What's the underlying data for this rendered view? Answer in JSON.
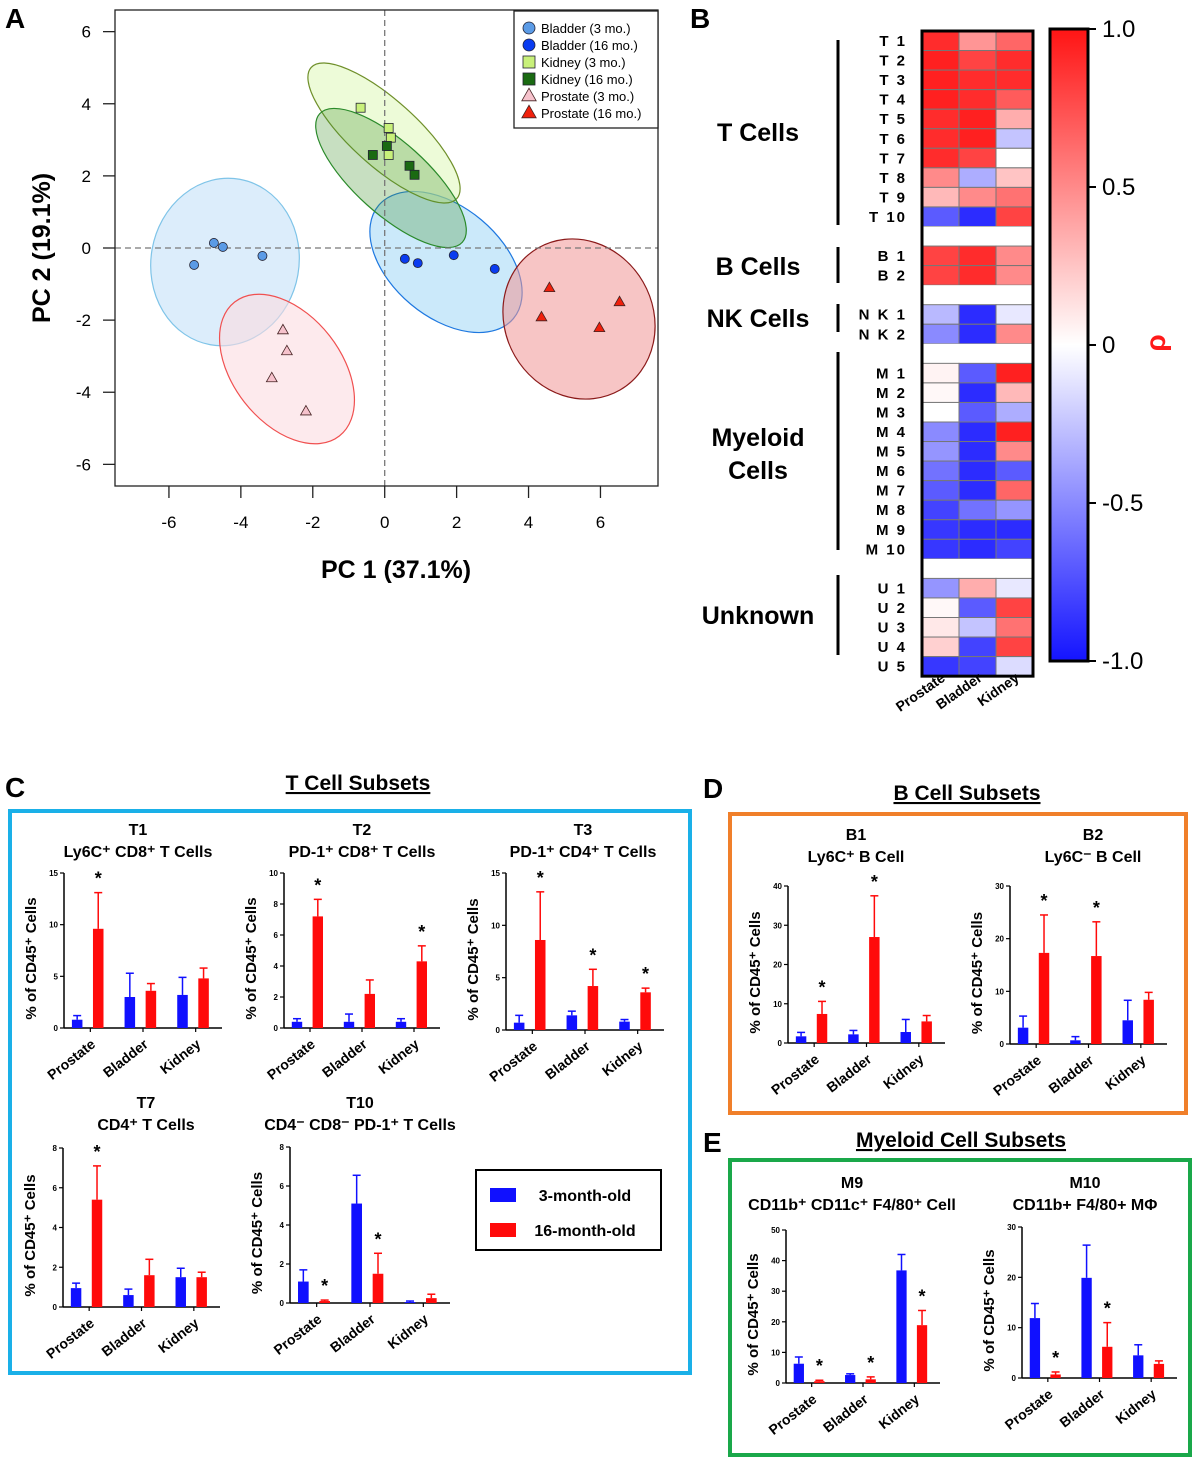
{
  "panel_labels": {
    "a": "A",
    "b": "B",
    "c": "C",
    "d": "D",
    "e": "E"
  },
  "section_titles": {
    "t": "T Cell Subsets",
    "b": "B Cell Subsets",
    "m": "Myeloid Cell Subsets"
  },
  "bar_legend": {
    "young": "3-month-old",
    "old": "16-month-old",
    "colors": {
      "young": "#1010ff",
      "old": "#ff0a0a"
    }
  },
  "chart_data": [
    {
      "id": "pca",
      "type": "scatter",
      "xlabel": "PC 1 (37.1%)",
      "ylabel": "PC 2 (19.1%)",
      "xlim": [
        -7.5,
        7.6
      ],
      "ylim": [
        -6.6,
        6.6
      ],
      "xticks": [
        -6,
        -4,
        -2,
        0,
        2,
        4,
        6
      ],
      "yticks": [
        -6,
        -4,
        -2,
        0,
        2,
        4,
        6
      ],
      "reference_lines": "dashed at x=0 and y=0",
      "legend_position": "top-right",
      "series": [
        {
          "name": "Bladder (3 mo.)",
          "marker": "circle",
          "color": "#5b9be6",
          "x": [
            -5.3,
            -4.75,
            -4.5,
            -3.4
          ],
          "y": [
            -0.47,
            0.14,
            0.03,
            -0.22
          ]
        },
        {
          "name": "Bladder (16 mo.)",
          "marker": "circle",
          "color": "#0a3cf0",
          "x": [
            0.56,
            0.92,
            1.92,
            3.06
          ],
          "y": [
            -0.3,
            -0.42,
            -0.2,
            -0.58
          ]
        },
        {
          "name": "Kidney (3 mo.)",
          "marker": "square",
          "color": "#c8f07a",
          "x": [
            -0.67,
            0.11,
            0.17,
            0.11
          ],
          "y": [
            3.89,
            3.33,
            3.06,
            2.58
          ]
        },
        {
          "name": "Kidney (16 mo.)",
          "marker": "square",
          "color": "#1a6a12",
          "x": [
            -0.33,
            0.06,
            0.69,
            0.83
          ],
          "y": [
            2.58,
            2.83,
            2.28,
            2.03
          ]
        },
        {
          "name": "Prostate (3 mo.)",
          "marker": "triangle",
          "color": "#f6c2cc",
          "x": [
            -2.83,
            -2.72,
            -3.14,
            -2.19
          ],
          "y": [
            -2.28,
            -2.86,
            -3.61,
            -4.53
          ]
        },
        {
          "name": "Prostate (16 mo.)",
          "marker": "triangle",
          "color": "#f0200c",
          "x": [
            4.58,
            4.36,
            5.97,
            6.53
          ],
          "y": [
            -1.11,
            -1.92,
            -2.22,
            -1.5
          ]
        }
      ]
    },
    {
      "id": "heatmap",
      "type": "heatmap",
      "columns": [
        "Prostate",
        "Bladder",
        "Kidney"
      ],
      "colorbar_label": "ρ",
      "colorbar_ticks": [
        "1.0",
        "0.5",
        "0",
        "-0.5",
        "-1.0"
      ],
      "colorbar_range": [
        -1,
        1
      ],
      "colors": {
        "low": "#1414ff",
        "mid": "#ffffff",
        "high": "#ff1414"
      },
      "groups": [
        {
          "label": "T Cells",
          "rows": [
            {
              "label": "T 1",
              "values": [
                0.9,
                0.45,
                0.65
              ]
            },
            {
              "label": "T 2",
              "values": [
                0.95,
                0.8,
                0.9
              ]
            },
            {
              "label": "T 3",
              "values": [
                0.95,
                0.9,
                0.9
              ]
            },
            {
              "label": "T 4",
              "values": [
                0.95,
                0.9,
                0.7
              ]
            },
            {
              "label": "T 5",
              "values": [
                0.9,
                0.95,
                0.35
              ]
            },
            {
              "label": "T 6",
              "values": [
                0.9,
                0.95,
                -0.25
              ]
            },
            {
              "label": "T 7",
              "values": [
                0.9,
                0.8,
                0.0
              ]
            },
            {
              "label": "T 8",
              "values": [
                0.5,
                -0.35,
                0.25
              ]
            },
            {
              "label": "T 9",
              "values": [
                0.3,
                0.5,
                0.6
              ]
            },
            {
              "label": "T 10",
              "values": [
                -0.7,
                -0.9,
                0.8
              ]
            }
          ]
        },
        {
          "label": "B Cells",
          "rows": [
            {
              "label": "B 1",
              "values": [
                0.8,
                0.9,
                0.5
              ]
            },
            {
              "label": "B 2",
              "values": [
                0.8,
                0.9,
                0.5
              ]
            }
          ]
        },
        {
          "label": "NK Cells",
          "rows": [
            {
              "label": "N K 1",
              "values": [
                -0.3,
                -0.9,
                -0.1
              ]
            },
            {
              "label": "N K 2",
              "values": [
                -0.5,
                -0.9,
                0.5
              ]
            }
          ]
        },
        {
          "label": "Myeloid\nCells",
          "rows": [
            {
              "label": "M 1",
              "values": [
                0.05,
                -0.7,
                0.95
              ]
            },
            {
              "label": "M 2",
              "values": [
                0.03,
                -0.9,
                0.3
              ]
            },
            {
              "label": "M 3",
              "values": [
                0.0,
                -0.7,
                -0.35
              ]
            },
            {
              "label": "M 4",
              "values": [
                -0.5,
                -0.9,
                0.95
              ]
            },
            {
              "label": "M 5",
              "values": [
                -0.45,
                -0.9,
                0.5
              ]
            },
            {
              "label": "M 6",
              "values": [
                -0.6,
                -0.9,
                -0.7
              ]
            },
            {
              "label": "M 7",
              "values": [
                -0.7,
                -0.9,
                0.65
              ]
            },
            {
              "label": "M 8",
              "values": [
                -0.8,
                -0.6,
                -0.45
              ]
            },
            {
              "label": "M 9",
              "values": [
                -0.85,
                -0.9,
                -0.9
              ]
            },
            {
              "label": "M 10",
              "values": [
                -0.85,
                -0.9,
                -0.8
              ]
            }
          ]
        },
        {
          "label": "Unknown",
          "rows": [
            {
              "label": "U 1",
              "values": [
                -0.45,
                0.35,
                -0.1
              ]
            },
            {
              "label": "U 2",
              "values": [
                0.03,
                -0.7,
                0.8
              ]
            },
            {
              "label": "U 3",
              "values": [
                0.1,
                -0.25,
                0.6
              ]
            },
            {
              "label": "U 4",
              "values": [
                0.2,
                -0.8,
                0.8
              ]
            },
            {
              "label": "U 5",
              "values": [
                -0.85,
                -0.8,
                -0.15
              ]
            }
          ]
        }
      ]
    },
    {
      "id": "T1",
      "type": "bar",
      "title": "T1",
      "subtitle": "Ly6C⁺ CD8⁺ T Cells",
      "ylabel": "% of CD45⁺ Cells",
      "ylim": [
        0,
        15
      ],
      "yticks": [
        0,
        5,
        10,
        15
      ],
      "categories": [
        "Prostate",
        "Bladder",
        "Kidney"
      ],
      "series": [
        {
          "name": "3-month-old",
          "values": [
            0.8,
            3.0,
            3.2
          ],
          "errors": [
            0.4,
            2.3,
            1.7
          ]
        },
        {
          "name": "16-month-old",
          "values": [
            9.6,
            3.6,
            4.8
          ],
          "errors": [
            3.5,
            0.7,
            1.0
          ]
        }
      ],
      "significant": [
        true,
        false,
        false
      ]
    },
    {
      "id": "T2",
      "type": "bar",
      "title": "T2",
      "subtitle": "PD-1⁺ CD8⁺ T Cells",
      "ylabel": "% of CD45⁺ Cells",
      "ylim": [
        0,
        10
      ],
      "yticks": [
        0,
        2,
        4,
        6,
        8,
        10
      ],
      "categories": [
        "Prostate",
        "Bladder",
        "Kidney"
      ],
      "series": [
        {
          "name": "3-month-old",
          "values": [
            0.4,
            0.4,
            0.4
          ],
          "errors": [
            0.2,
            0.5,
            0.2
          ]
        },
        {
          "name": "16-month-old",
          "values": [
            7.2,
            2.2,
            4.3
          ],
          "errors": [
            1.1,
            0.9,
            1.0
          ]
        }
      ],
      "significant": [
        true,
        false,
        true
      ]
    },
    {
      "id": "T3",
      "type": "bar",
      "title": "T3",
      "subtitle": "PD-1⁺ CD4⁺ T Cells",
      "ylabel": "% of CD45⁺ Cells",
      "ylim": [
        0,
        15
      ],
      "yticks": [
        0,
        5,
        10,
        15
      ],
      "categories": [
        "Prostate",
        "Bladder",
        "Kidney"
      ],
      "series": [
        {
          "name": "3-month-old",
          "values": [
            0.7,
            1.4,
            0.8
          ],
          "errors": [
            0.7,
            0.4,
            0.2
          ]
        },
        {
          "name": "16-month-old",
          "values": [
            8.6,
            4.2,
            3.6
          ],
          "errors": [
            4.6,
            1.6,
            0.4
          ]
        }
      ],
      "significant": [
        true,
        true,
        true
      ]
    },
    {
      "id": "T7",
      "type": "bar",
      "title": "T7",
      "subtitle": "CD4⁺ T Cells",
      "ylabel": "% of CD45⁺ Cells",
      "ylim": [
        0,
        8
      ],
      "yticks": [
        0,
        2,
        4,
        6,
        8
      ],
      "categories": [
        "Prostate",
        "Bladder",
        "Kidney"
      ],
      "series": [
        {
          "name": "3-month-old",
          "values": [
            0.95,
            0.6,
            1.5
          ],
          "errors": [
            0.25,
            0.3,
            0.45
          ]
        },
        {
          "name": "16-month-old",
          "values": [
            5.4,
            1.6,
            1.5
          ],
          "errors": [
            1.7,
            0.8,
            0.25
          ]
        }
      ],
      "significant": [
        true,
        false,
        false
      ]
    },
    {
      "id": "T10",
      "type": "bar",
      "title": "T10",
      "subtitle": "CD4⁻ CD8⁻ PD-1⁺ T Cells",
      "ylabel": "% of CD45⁺ Cells",
      "ylim": [
        0,
        8
      ],
      "yticks": [
        0,
        2,
        4,
        6,
        8
      ],
      "categories": [
        "Prostate",
        "Bladder",
        "Kidney"
      ],
      "series": [
        {
          "name": "3-month-old",
          "values": [
            1.1,
            5.1,
            0.05
          ],
          "errors": [
            0.6,
            1.45,
            0.05
          ]
        },
        {
          "name": "16-month-old",
          "values": [
            0.1,
            1.5,
            0.25
          ],
          "errors": [
            0.05,
            1.05,
            0.2
          ]
        }
      ],
      "significant": [
        true,
        true,
        false
      ]
    },
    {
      "id": "B1",
      "type": "bar",
      "title": "B1",
      "subtitle": "Ly6C⁺ B Cell",
      "ylabel": "% of CD45⁺ Cells",
      "ylim": [
        0,
        40
      ],
      "yticks": [
        0,
        10,
        20,
        30,
        40
      ],
      "categories": [
        "Prostate",
        "Bladder",
        "Kidney"
      ],
      "series": [
        {
          "name": "3-month-old",
          "values": [
            1.7,
            2.2,
            2.8
          ],
          "errors": [
            1.0,
            1.0,
            3.2
          ]
        },
        {
          "name": "16-month-old",
          "values": [
            7.4,
            27.0,
            5.5
          ],
          "errors": [
            3.2,
            10.5,
            1.5
          ]
        }
      ],
      "significant": [
        true,
        true,
        false
      ]
    },
    {
      "id": "B2",
      "type": "bar",
      "title": "B2",
      "subtitle": "Ly6C⁻ B Cell",
      "ylabel": "% of CD45⁺ Cells",
      "ylim": [
        0,
        30
      ],
      "yticks": [
        0,
        10,
        20,
        30
      ],
      "categories": [
        "Prostate",
        "Bladder",
        "Kidney"
      ],
      "series": [
        {
          "name": "3-month-old",
          "values": [
            3.1,
            0.7,
            4.5
          ],
          "errors": [
            2.2,
            0.7,
            3.8
          ]
        },
        {
          "name": "16-month-old",
          "values": [
            17.3,
            16.7,
            8.4
          ],
          "errors": [
            7.2,
            6.5,
            1.4
          ]
        }
      ],
      "significant": [
        true,
        true,
        false
      ]
    },
    {
      "id": "M9",
      "type": "bar",
      "title": "M9",
      "subtitle": "CD11b⁺ CD11c⁺ F4/80⁺ Cell",
      "ylabel": "% of CD45⁺ Cells",
      "ylim": [
        0,
        50
      ],
      "yticks": [
        0,
        10,
        20,
        30,
        40,
        50
      ],
      "categories": [
        "Prostate",
        "Bladder",
        "Kidney"
      ],
      "series": [
        {
          "name": "3-month-old",
          "values": [
            6.3,
            2.6,
            36.8
          ],
          "errors": [
            2.2,
            0.4,
            5.2
          ]
        },
        {
          "name": "16-month-old",
          "values": [
            0.6,
            1.2,
            18.9
          ],
          "errors": [
            0.3,
            0.8,
            4.8
          ]
        }
      ],
      "significant": [
        true,
        true,
        true
      ]
    },
    {
      "id": "M10",
      "type": "bar",
      "title": "M10",
      "subtitle": "CD11b+ F4/80+ MΦ",
      "ylabel": "% of CD45⁺ Cells",
      "ylim": [
        0,
        30
      ],
      "yticks": [
        0,
        10,
        20,
        30
      ],
      "categories": [
        "Prostate",
        "Bladder",
        "Kidney"
      ],
      "series": [
        {
          "name": "3-month-old",
          "values": [
            11.9,
            19.9,
            4.5
          ],
          "errors": [
            2.9,
            6.5,
            2.1
          ]
        },
        {
          "name": "16-month-old",
          "values": [
            0.7,
            6.2,
            2.8
          ],
          "errors": [
            0.5,
            4.8,
            0.6
          ]
        }
      ],
      "significant": [
        true,
        true,
        false
      ]
    }
  ]
}
